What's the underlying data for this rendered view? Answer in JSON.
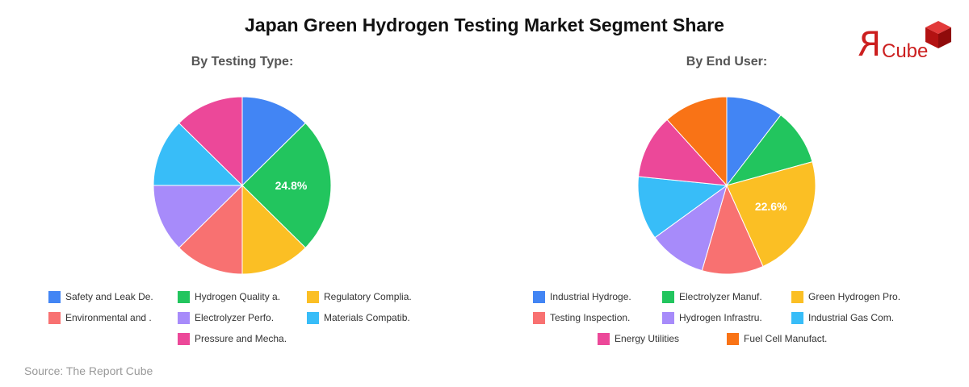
{
  "title": "Japan Green Hydrogen Testing Market Segment Share",
  "logo": {
    "mark": "R",
    "text": "Cube",
    "cube_icon": "red-cube-icon",
    "color": "#cc1f1f"
  },
  "source": "Source: The Report Cube",
  "chart_data": [
    {
      "type": "pie",
      "title": "By Testing Type:",
      "legend_position": "bottom",
      "start_angle_deg": 0,
      "direction": "clockwise",
      "categories": [
        "Safety and Leak De.",
        "Hydrogen Quality a.",
        "Regulatory Complia.",
        "Environmental and .",
        "Electrolyzer Perfo.",
        "Materials Compatib.",
        "Pressure and Mecha."
      ],
      "values": [
        12.6,
        24.8,
        12.6,
        12.6,
        12.4,
        12.4,
        12.6
      ],
      "colors": [
        "#4285f4",
        "#22c55e",
        "#fbbf24",
        "#f87171",
        "#a78bfa",
        "#38bdf8",
        "#ec4899"
      ],
      "data_labels": [
        "",
        "24.8%",
        "",
        "",
        "",
        "",
        ""
      ]
    },
    {
      "type": "pie",
      "title": "By End User:",
      "legend_position": "bottom",
      "start_angle_deg": 0,
      "direction": "clockwise",
      "categories": [
        "Industrial Hydroge.",
        "Electrolyzer Manuf.",
        "Green Hydrogen Pro.",
        "Testing Inspection.",
        "Hydrogen Infrastru.",
        "Industrial Gas Com.",
        "Energy Utilities",
        "Fuel Cell Manufact."
      ],
      "values": [
        10.4,
        10.3,
        22.6,
        11.2,
        10.5,
        11.6,
        11.7,
        11.7
      ],
      "colors": [
        "#4285f4",
        "#22c55e",
        "#fbbf24",
        "#f87171",
        "#a78bfa",
        "#38bdf8",
        "#ec4899",
        "#f97316"
      ],
      "data_labels": [
        "",
        "",
        "22.6%",
        "",
        "",
        "",
        "",
        ""
      ]
    }
  ]
}
